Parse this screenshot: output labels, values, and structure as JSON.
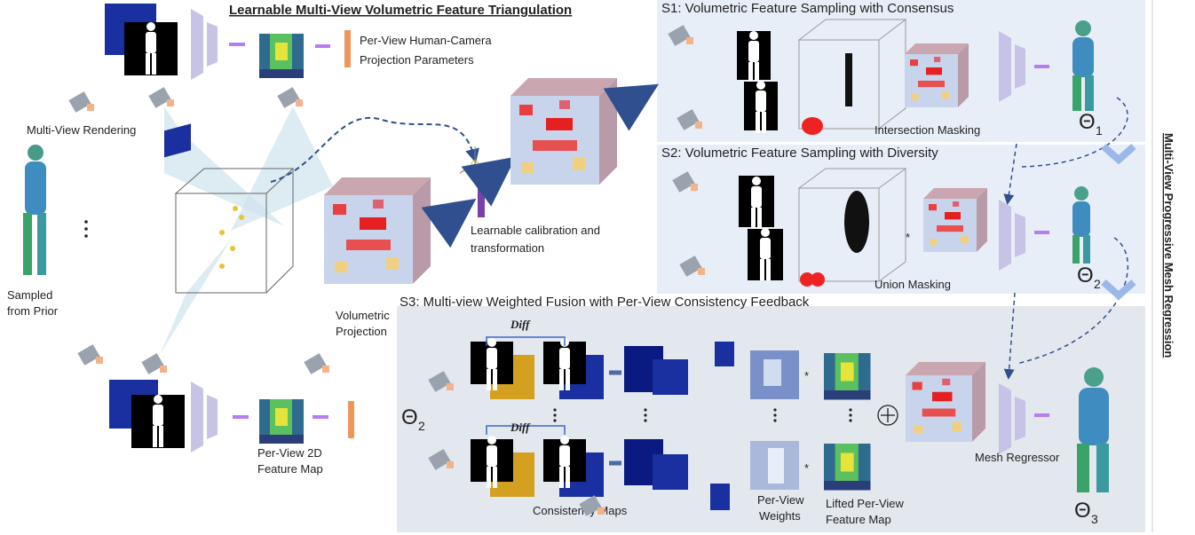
{
  "header": {
    "title": "Learnable Multi-View Volumetric Feature Triangulation"
  },
  "left": {
    "per_view_params": [
      "Per-View Human-Camera",
      "Projection Parameters"
    ],
    "multi_view_rendering": "Multi-View Rendering",
    "sampled_from_prior": [
      "Sampled",
      "from Prior"
    ],
    "volumetric_projection": [
      "Volumetric",
      "Projection"
    ],
    "calibration": [
      "Learnable calibration and",
      "transformation"
    ],
    "feature_map": [
      "Per-View 2D",
      "Feature Map"
    ]
  },
  "s1": {
    "title": "S1: Volumetric Feature Sampling with Consensus",
    "masking": "Intersection Masking",
    "theta": {
      "symbol": "Θ",
      "subscript": "1"
    }
  },
  "s2": {
    "title": "S2: Volumetric Feature Sampling with Diversity",
    "masking": "Union Masking",
    "theta": {
      "symbol": "Θ",
      "subscript": "2"
    }
  },
  "s3": {
    "title": "S3: Multi-view Weighted Fusion with Per-View Consistency Feedback",
    "theta_in": {
      "symbol": "Θ",
      "subscript": "2"
    },
    "diff": [
      "Diff",
      "Diff"
    ],
    "consistency_maps": "Consistency Maps",
    "weights": [
      "Per-View",
      "Weights"
    ],
    "lifted": [
      "Lifted Per-View",
      "Feature Map"
    ],
    "mesh_regressor": "Mesh Regressor",
    "theta_out": {
      "symbol": "Θ",
      "subscript": "3"
    }
  },
  "side_label": "Multi-View Progressive Mesh Regression"
}
